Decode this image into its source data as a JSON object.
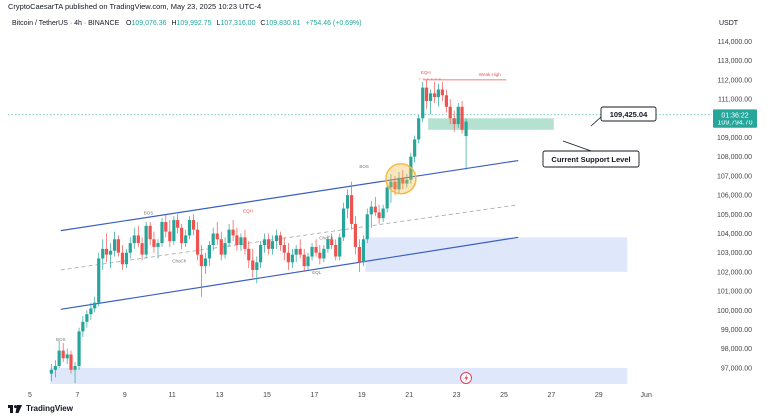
{
  "header": {
    "publisher": "CryptoCaesarTA published on TradingView.com, May 23, 2025 10:23 UTC-4",
    "symbol": "Bitcoin / TetherUS · 4h · BINANCE",
    "ohlc": {
      "open_label": "O",
      "open": "109,076.36",
      "high_label": "H",
      "high": "109,992.75",
      "low_label": "L",
      "low": "107,316.00",
      "close_label": "C",
      "close": "109,830.81",
      "change": "+754.46 (+0.69%)"
    },
    "currency": "USDT"
  },
  "colors": {
    "up": "#26a69a",
    "down": "#ef5350",
    "channel": "#3b5fc0",
    "zone_blue": "#dbe6fb",
    "zone_green": "#a8dcc8",
    "highlight": "#f5b642",
    "text": "#131722",
    "axis_text": "#444444"
  },
  "chart_data": {
    "type": "candlestick",
    "x_ticks": [
      "5",
      "7",
      "9",
      "11",
      "13",
      "15",
      "17",
      "19",
      "21",
      "23",
      "25",
      "27",
      "29",
      "Jun"
    ],
    "y_ticks": [
      "114,000.00",
      "113,000.00",
      "112,000.00",
      "111,000.00",
      "110,000.00",
      "109,000.00",
      "108,000.00",
      "107,000.00",
      "106,000.00",
      "105,000.00",
      "104,000.00",
      "103,000.00",
      "102,000.00",
      "101,000.00",
      "100,000.00",
      "99,000.00",
      "98,000.00",
      "97,000.00"
    ],
    "ylim": [
      96000,
      115000
    ],
    "price_badges": [
      {
        "text": "109,794.70",
        "value": 109794.7
      },
      {
        "text": "01:36:22",
        "value": 110180
      }
    ],
    "callout_price": {
      "text": "109,425.04",
      "value": 109425.04
    },
    "support_label": "Current Support Level",
    "annotations": [
      {
        "text": "BOS",
        "day": 6.3,
        "value": 98400
      },
      {
        "text": "BOS",
        "day": 10.0,
        "value": 105000
      },
      {
        "text": "EQH",
        "day": 14.2,
        "value": 105100
      },
      {
        "text": "ChoCh",
        "day": 11.3,
        "value": 102500
      },
      {
        "text": "ChoCh",
        "day": 17.5,
        "value": 103700
      },
      {
        "text": "EQL",
        "day": 17.1,
        "value": 101900
      },
      {
        "text": "BOS",
        "day": 19.1,
        "value": 107400
      },
      {
        "text": "EQH",
        "day": 21.7,
        "value": 112300
      },
      {
        "text": "Weak High",
        "day": 24.4,
        "value": 112200
      }
    ],
    "zones": [
      {
        "name": "demand-zone-upper",
        "x_from": 19.15,
        "x_to": 30.2,
        "y_from": 102000,
        "y_to": 103800
      },
      {
        "name": "demand-zone-lower",
        "x_from": 5.85,
        "x_to": 30.2,
        "y_from": 96000,
        "y_to": 97000
      },
      {
        "name": "support-zone",
        "x_from": 21.8,
        "x_to": 27.1,
        "y_from": 109400,
        "y_to": 110000
      }
    ],
    "channel": {
      "upper": [
        {
          "day": 6.3,
          "value": 104150
        },
        {
          "day": 25.6,
          "value": 107800
        }
      ],
      "lower": [
        {
          "day": 6.3,
          "value": 100050
        },
        {
          "day": 25.6,
          "value": 103800
        }
      ],
      "mid": [
        {
          "day": 6.3,
          "value": 102100
        },
        {
          "day": 25.6,
          "value": 105500
        }
      ]
    },
    "weak_high_line": {
      "from_day": 21.6,
      "to_day": 25.1,
      "value": 112000
    },
    "eqh_line": {
      "from_day": 21.4,
      "to_day": 22.4,
      "value": 112050
    },
    "last_price_line": 110180,
    "highlight_circle": {
      "day": 20.65,
      "value": 106850
    },
    "candles": [
      {
        "t": 5.9,
        "o": 96700,
        "h": 97200,
        "l": 96300,
        "c": 96900
      },
      {
        "t": 6.07,
        "o": 96900,
        "h": 97400,
        "l": 96500,
        "c": 97100
      },
      {
        "t": 6.23,
        "o": 97100,
        "h": 98400,
        "l": 97000,
        "c": 97900
      },
      {
        "t": 6.4,
        "o": 97900,
        "h": 98300,
        "l": 97300,
        "c": 97500
      },
      {
        "t": 6.57,
        "o": 97500,
        "h": 98000,
        "l": 97200,
        "c": 97700
      },
      {
        "t": 6.73,
        "o": 97700,
        "h": 97900,
        "l": 96700,
        "c": 96900
      },
      {
        "t": 6.9,
        "o": 96900,
        "h": 97300,
        "l": 96200,
        "c": 97100
      },
      {
        "t": 7.07,
        "o": 97100,
        "h": 99100,
        "l": 96900,
        "c": 98900
      },
      {
        "t": 7.23,
        "o": 98900,
        "h": 99700,
        "l": 98600,
        "c": 99400
      },
      {
        "t": 7.4,
        "o": 99400,
        "h": 100000,
        "l": 99100,
        "c": 99800
      },
      {
        "t": 7.57,
        "o": 99800,
        "h": 100400,
        "l": 99500,
        "c": 100100
      },
      {
        "t": 7.73,
        "o": 100100,
        "h": 100700,
        "l": 99900,
        "c": 100400
      },
      {
        "t": 7.9,
        "o": 100400,
        "h": 103000,
        "l": 100200,
        "c": 102700
      },
      {
        "t": 8.07,
        "o": 102700,
        "h": 103700,
        "l": 102100,
        "c": 103200
      },
      {
        "t": 8.23,
        "o": 103200,
        "h": 104000,
        "l": 102500,
        "c": 102900
      },
      {
        "t": 8.4,
        "o": 102900,
        "h": 103500,
        "l": 102200,
        "c": 103100
      },
      {
        "t": 8.57,
        "o": 103100,
        "h": 104100,
        "l": 102800,
        "c": 103700
      },
      {
        "t": 8.73,
        "o": 103700,
        "h": 103900,
        "l": 102800,
        "c": 103000
      },
      {
        "t": 8.9,
        "o": 103000,
        "h": 103400,
        "l": 102100,
        "c": 102400
      },
      {
        "t": 9.07,
        "o": 102400,
        "h": 103200,
        "l": 102200,
        "c": 103000
      },
      {
        "t": 9.23,
        "o": 103000,
        "h": 103800,
        "l": 102700,
        "c": 103500
      },
      {
        "t": 9.4,
        "o": 103500,
        "h": 104300,
        "l": 103200,
        "c": 103900
      },
      {
        "t": 9.57,
        "o": 103900,
        "h": 104400,
        "l": 103300,
        "c": 103500
      },
      {
        "t": 9.73,
        "o": 103500,
        "h": 103800,
        "l": 102600,
        "c": 102900
      },
      {
        "t": 9.9,
        "o": 102900,
        "h": 104600,
        "l": 102700,
        "c": 104400
      },
      {
        "t": 10.07,
        "o": 104400,
        "h": 104600,
        "l": 103400,
        "c": 103700
      },
      {
        "t": 10.23,
        "o": 103700,
        "h": 104100,
        "l": 103000,
        "c": 103300
      },
      {
        "t": 10.4,
        "o": 103300,
        "h": 103700,
        "l": 102700,
        "c": 103500
      },
      {
        "t": 10.57,
        "o": 103500,
        "h": 104800,
        "l": 103300,
        "c": 104600
      },
      {
        "t": 10.73,
        "o": 104600,
        "h": 105000,
        "l": 103800,
        "c": 104100
      },
      {
        "t": 10.9,
        "o": 104100,
        "h": 104700,
        "l": 103300,
        "c": 103600
      },
      {
        "t": 11.07,
        "o": 103600,
        "h": 104900,
        "l": 103400,
        "c": 104700
      },
      {
        "t": 11.23,
        "o": 104700,
        "h": 105000,
        "l": 104000,
        "c": 104300
      },
      {
        "t": 11.4,
        "o": 104300,
        "h": 104500,
        "l": 103200,
        "c": 103500
      },
      {
        "t": 11.57,
        "o": 103500,
        "h": 104200,
        "l": 103300,
        "c": 103900
      },
      {
        "t": 11.73,
        "o": 103900,
        "h": 104900,
        "l": 103700,
        "c": 104700
      },
      {
        "t": 11.9,
        "o": 104700,
        "h": 105000,
        "l": 103900,
        "c": 104200
      },
      {
        "t": 12.07,
        "o": 104200,
        "h": 104600,
        "l": 102600,
        "c": 102900
      },
      {
        "t": 12.23,
        "o": 102900,
        "h": 103400,
        "l": 100700,
        "c": 102300
      },
      {
        "t": 12.4,
        "o": 102300,
        "h": 103000,
        "l": 101900,
        "c": 102700
      },
      {
        "t": 12.57,
        "o": 102700,
        "h": 103600,
        "l": 102300,
        "c": 103400
      },
      {
        "t": 12.73,
        "o": 103400,
        "h": 104300,
        "l": 103100,
        "c": 104000
      },
      {
        "t": 12.9,
        "o": 104000,
        "h": 104600,
        "l": 103400,
        "c": 103700
      },
      {
        "t": 13.07,
        "o": 103700,
        "h": 104100,
        "l": 102600,
        "c": 102900
      },
      {
        "t": 13.23,
        "o": 102900,
        "h": 103800,
        "l": 102700,
        "c": 103500
      },
      {
        "t": 13.4,
        "o": 103500,
        "h": 104500,
        "l": 103300,
        "c": 104200
      },
      {
        "t": 13.57,
        "o": 104200,
        "h": 104700,
        "l": 103600,
        "c": 103900
      },
      {
        "t": 13.73,
        "o": 103900,
        "h": 104300,
        "l": 103100,
        "c": 103400
      },
      {
        "t": 13.9,
        "o": 103400,
        "h": 104000,
        "l": 103100,
        "c": 103800
      },
      {
        "t": 14.07,
        "o": 103800,
        "h": 104200,
        "l": 102900,
        "c": 103200
      },
      {
        "t": 14.23,
        "o": 103200,
        "h": 103600,
        "l": 102200,
        "c": 102600
      },
      {
        "t": 14.4,
        "o": 102600,
        "h": 103200,
        "l": 101700,
        "c": 102100
      },
      {
        "t": 14.57,
        "o": 102100,
        "h": 102800,
        "l": 101400,
        "c": 102500
      },
      {
        "t": 14.73,
        "o": 102500,
        "h": 103600,
        "l": 102200,
        "c": 103400
      },
      {
        "t": 14.9,
        "o": 103400,
        "h": 104000,
        "l": 103000,
        "c": 103700
      },
      {
        "t": 15.07,
        "o": 103700,
        "h": 104000,
        "l": 102900,
        "c": 103200
      },
      {
        "t": 15.23,
        "o": 103200,
        "h": 103900,
        "l": 102900,
        "c": 103600
      },
      {
        "t": 15.4,
        "o": 103600,
        "h": 104200,
        "l": 103200,
        "c": 103900
      },
      {
        "t": 15.57,
        "o": 103900,
        "h": 104100,
        "l": 103100,
        "c": 103400
      },
      {
        "t": 15.73,
        "o": 103400,
        "h": 103800,
        "l": 102600,
        "c": 103000
      },
      {
        "t": 15.9,
        "o": 103000,
        "h": 103500,
        "l": 102100,
        "c": 102500
      },
      {
        "t": 16.07,
        "o": 102500,
        "h": 103200,
        "l": 102200,
        "c": 102900
      },
      {
        "t": 16.23,
        "o": 102900,
        "h": 103400,
        "l": 102500,
        "c": 103200
      },
      {
        "t": 16.4,
        "o": 103200,
        "h": 103700,
        "l": 102700,
        "c": 102900
      },
      {
        "t": 16.57,
        "o": 102900,
        "h": 103200,
        "l": 102000,
        "c": 102300
      },
      {
        "t": 16.73,
        "o": 102300,
        "h": 103000,
        "l": 102100,
        "c": 102800
      },
      {
        "t": 16.9,
        "o": 102800,
        "h": 103500,
        "l": 102600,
        "c": 103300
      },
      {
        "t": 17.07,
        "o": 103300,
        "h": 103700,
        "l": 102800,
        "c": 103000
      },
      {
        "t": 17.23,
        "o": 103000,
        "h": 103400,
        "l": 102400,
        "c": 102700
      },
      {
        "t": 17.4,
        "o": 102700,
        "h": 103400,
        "l": 102500,
        "c": 103200
      },
      {
        "t": 17.57,
        "o": 103200,
        "h": 103900,
        "l": 103000,
        "c": 103700
      },
      {
        "t": 17.73,
        "o": 103700,
        "h": 104000,
        "l": 103200,
        "c": 103400
      },
      {
        "t": 17.9,
        "o": 103400,
        "h": 103700,
        "l": 102600,
        "c": 102800
      },
      {
        "t": 18.07,
        "o": 102800,
        "h": 104000,
        "l": 102600,
        "c": 103800
      },
      {
        "t": 18.23,
        "o": 103800,
        "h": 105600,
        "l": 103600,
        "c": 105300
      },
      {
        "t": 18.4,
        "o": 105300,
        "h": 106300,
        "l": 104800,
        "c": 106000
      },
      {
        "t": 18.57,
        "o": 106000,
        "h": 106700,
        "l": 104200,
        "c": 104500
      },
      {
        "t": 18.73,
        "o": 104500,
        "h": 104900,
        "l": 102900,
        "c": 103300
      },
      {
        "t": 18.9,
        "o": 103300,
        "h": 103700,
        "l": 102000,
        "c": 102500
      },
      {
        "t": 19.07,
        "o": 102500,
        "h": 103900,
        "l": 102300,
        "c": 103700
      },
      {
        "t": 19.23,
        "o": 103700,
        "h": 105300,
        "l": 103500,
        "c": 105000
      },
      {
        "t": 19.4,
        "o": 105000,
        "h": 105700,
        "l": 104300,
        "c": 105400
      },
      {
        "t": 19.57,
        "o": 105400,
        "h": 105900,
        "l": 104900,
        "c": 105100
      },
      {
        "t": 19.73,
        "o": 105100,
        "h": 105500,
        "l": 104500,
        "c": 104800
      },
      {
        "t": 19.9,
        "o": 104800,
        "h": 105500,
        "l": 104600,
        "c": 105300
      },
      {
        "t": 20.07,
        "o": 105300,
        "h": 106600,
        "l": 105100,
        "c": 106400
      },
      {
        "t": 20.23,
        "o": 106400,
        "h": 107100,
        "l": 105600,
        "c": 106700
      },
      {
        "t": 20.4,
        "o": 106700,
        "h": 107000,
        "l": 106000,
        "c": 106300
      },
      {
        "t": 20.57,
        "o": 106300,
        "h": 107200,
        "l": 106100,
        "c": 106900
      },
      {
        "t": 20.73,
        "o": 106900,
        "h": 107300,
        "l": 106300,
        "c": 106600
      },
      {
        "t": 20.9,
        "o": 106600,
        "h": 107100,
        "l": 106400,
        "c": 106800
      },
      {
        "t": 21.07,
        "o": 106800,
        "h": 108200,
        "l": 106600,
        "c": 108000
      },
      {
        "t": 21.23,
        "o": 108000,
        "h": 109100,
        "l": 107700,
        "c": 108900
      },
      {
        "t": 21.4,
        "o": 108900,
        "h": 110200,
        "l": 108700,
        "c": 110000
      },
      {
        "t": 21.57,
        "o": 110000,
        "h": 111900,
        "l": 109800,
        "c": 111600
      },
      {
        "t": 21.73,
        "o": 111600,
        "h": 112000,
        "l": 110500,
        "c": 110900
      },
      {
        "t": 21.9,
        "o": 110900,
        "h": 111500,
        "l": 110200,
        "c": 111300
      },
      {
        "t": 22.07,
        "o": 111300,
        "h": 111900,
        "l": 110800,
        "c": 111100
      },
      {
        "t": 22.23,
        "o": 111100,
        "h": 111800,
        "l": 110600,
        "c": 111500
      },
      {
        "t": 22.4,
        "o": 111500,
        "h": 111900,
        "l": 110900,
        "c": 111200
      },
      {
        "t": 22.57,
        "o": 111200,
        "h": 111500,
        "l": 110300,
        "c": 110600
      },
      {
        "t": 22.73,
        "o": 110600,
        "h": 111000,
        "l": 109700,
        "c": 110000
      },
      {
        "t": 22.9,
        "o": 110000,
        "h": 110400,
        "l": 109300,
        "c": 109700
      },
      {
        "t": 23.07,
        "o": 109700,
        "h": 110800,
        "l": 109500,
        "c": 110600
      },
      {
        "t": 23.23,
        "o": 110600,
        "h": 110900,
        "l": 109200,
        "c": 109400
      },
      {
        "t": 23.4,
        "o": 109076,
        "h": 109993,
        "l": 107316,
        "c": 109831
      }
    ]
  },
  "branding": {
    "name": "TradingView"
  }
}
